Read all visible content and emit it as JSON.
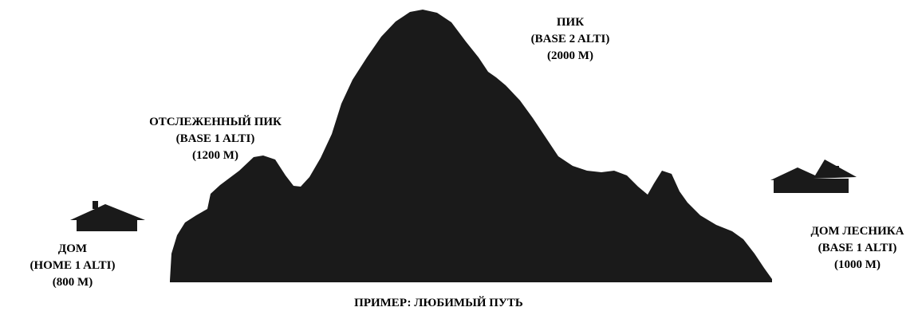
{
  "colors": {
    "silhouette": "#1a1a1a",
    "background": "#ffffff",
    "text": "#000000"
  },
  "points": {
    "home": {
      "icon": "house-icon",
      "lines": [
        "ДОМ",
        "(HOME 1 ALTI)",
        "(800 М)"
      ]
    },
    "tracked_peak": {
      "lines": [
        "ОТСЛЕЖЕННЫЙ ПИК",
        "(BASE 1 ALTI)",
        "(1200 М)"
      ]
    },
    "peak": {
      "lines": [
        "ПИК",
        "(BASE 2 ALTI)",
        "(2000 М)"
      ]
    },
    "forester_house": {
      "icon": "house-icon",
      "lines": [
        "ДОМ ЛЕСНИКА",
        "(BASE 1 ALTI)",
        "(1000 М)"
      ]
    }
  },
  "caption": "ПРИМЕР: ЛЮБИМЫЙ ПУТЬ"
}
